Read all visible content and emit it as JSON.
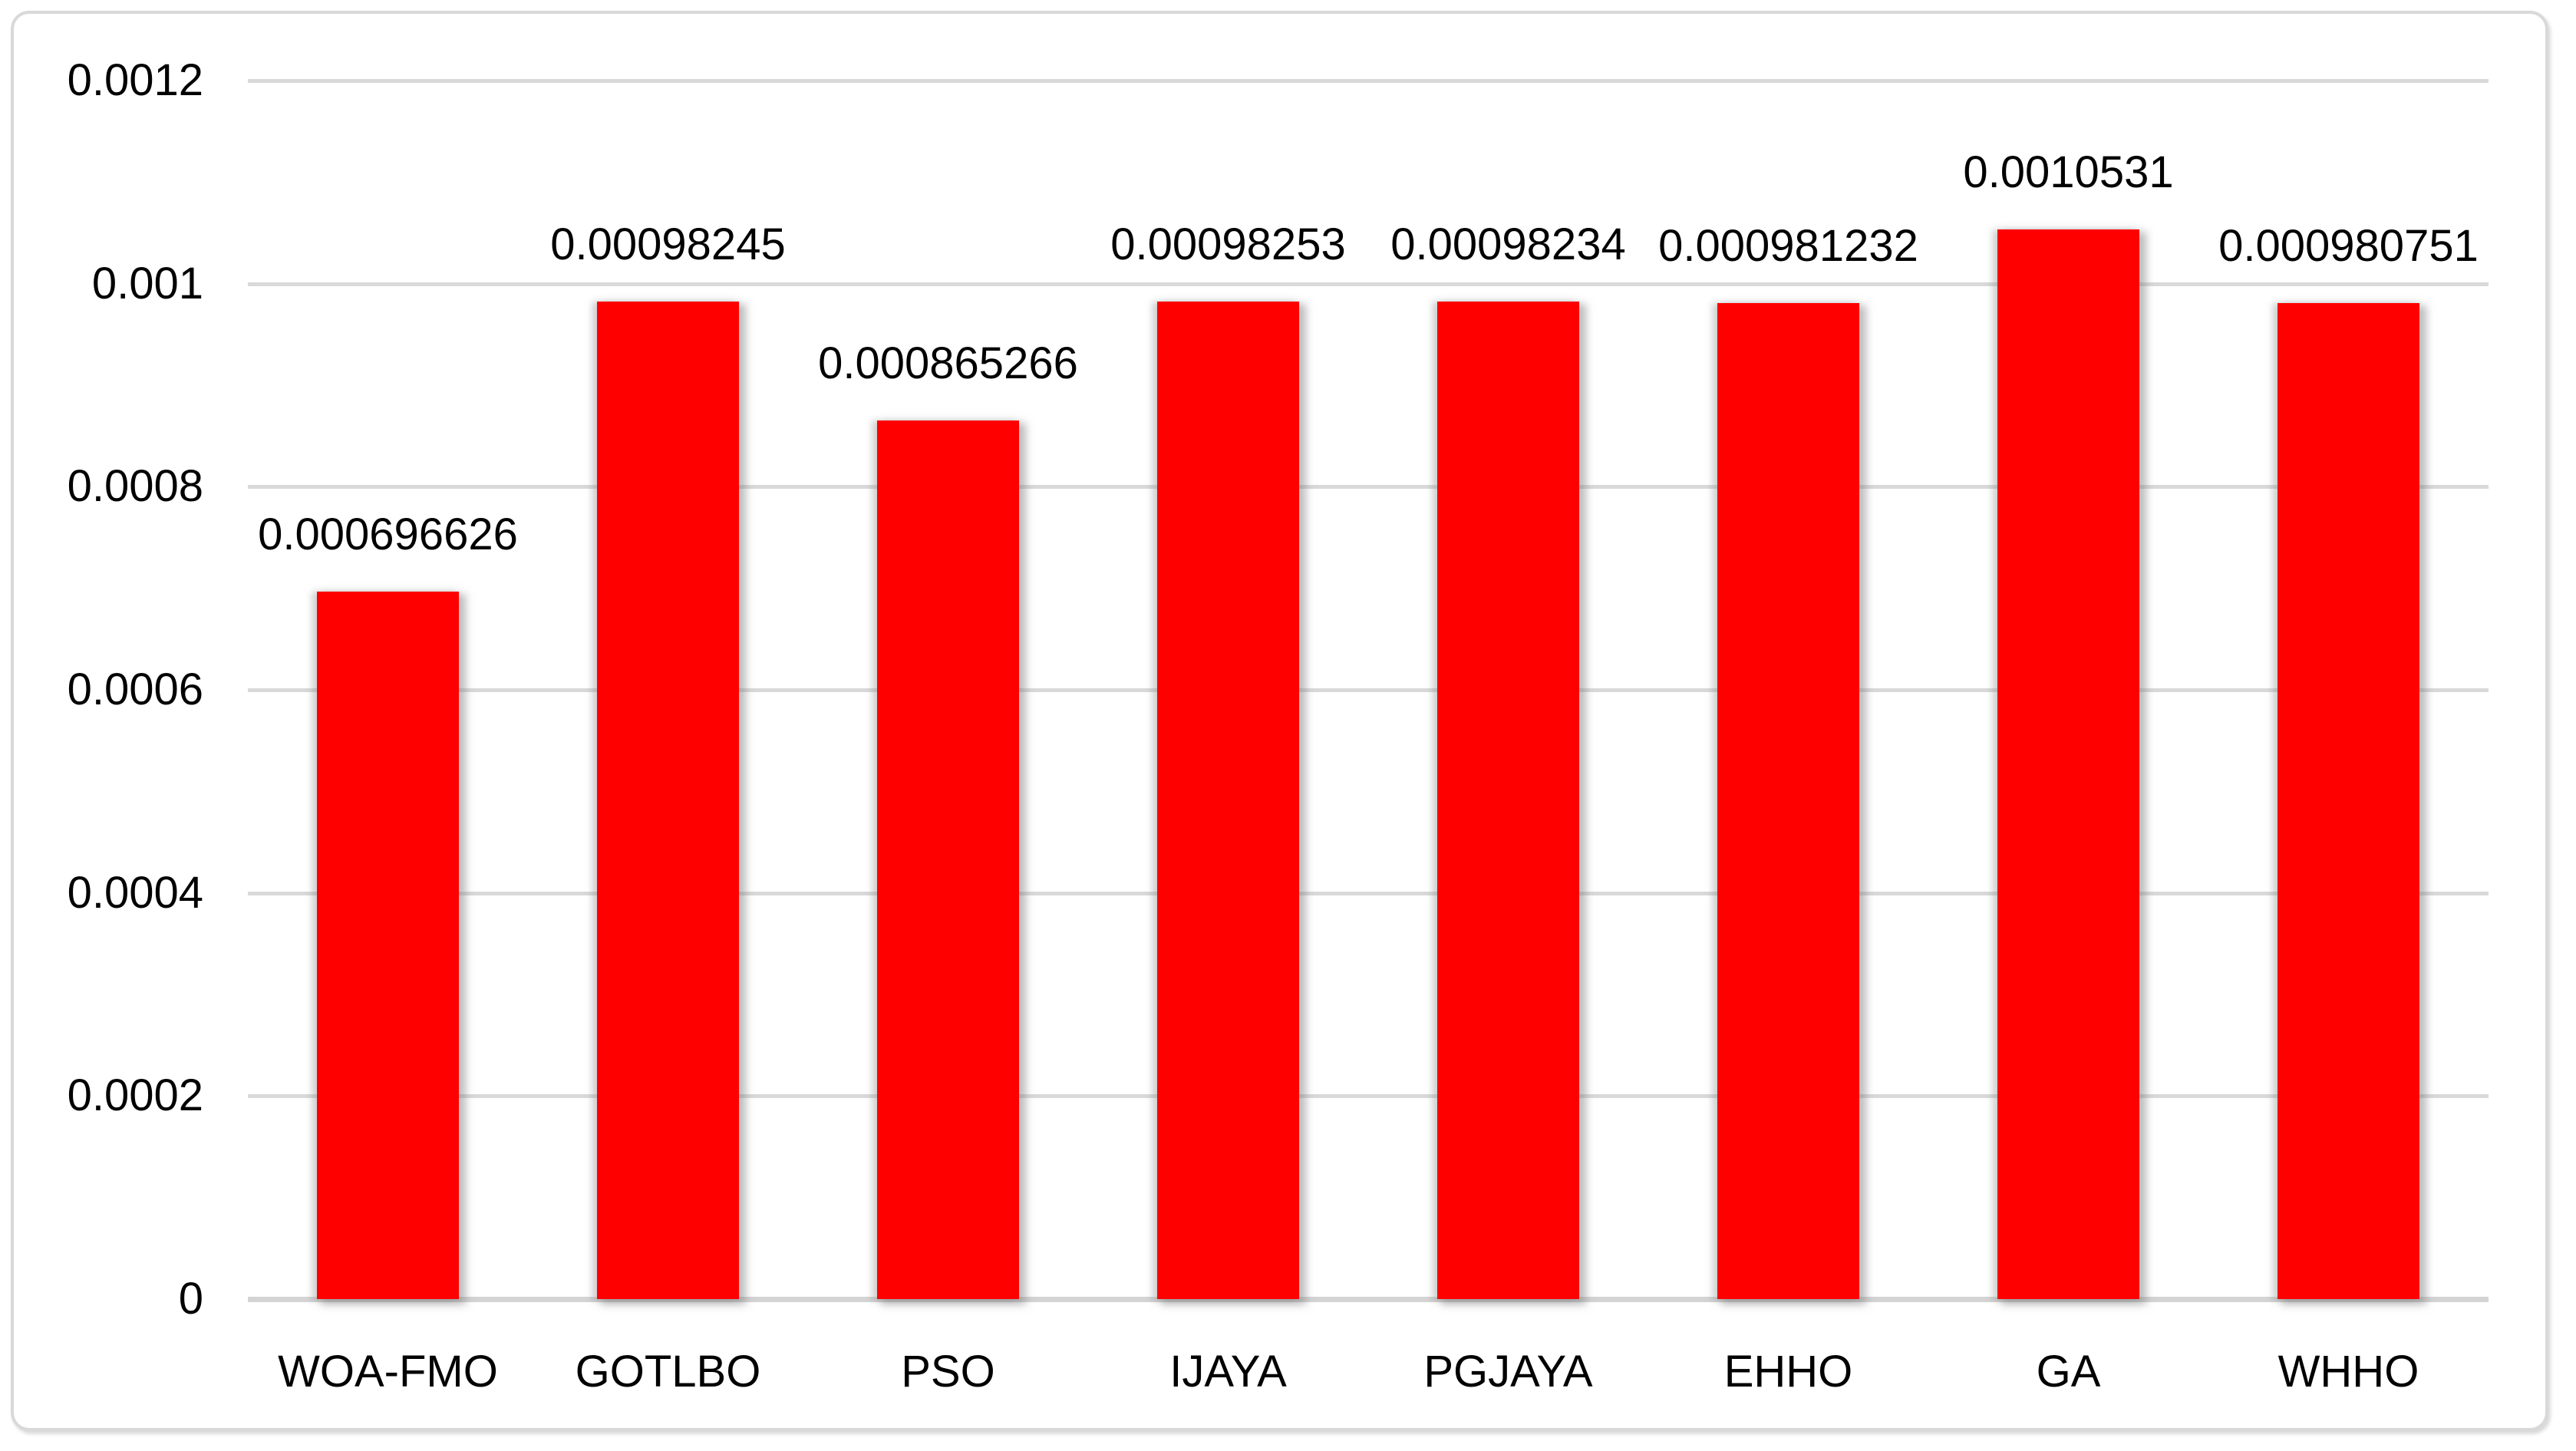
{
  "chart_data": {
    "type": "bar",
    "title": "",
    "xlabel": "",
    "ylabel": "",
    "categories": [
      "WOA-FMO",
      "GOTLBO",
      "PSO",
      "IJAYA",
      "PGJAYA",
      "EHHO",
      "GA",
      "WHHO"
    ],
    "values": [
      0.000696626,
      0.00098245,
      0.000865266,
      0.00098253,
      0.00098234,
      0.000981232,
      0.0010531,
      0.000980751
    ],
    "data_labels": [
      "0.000696626",
      "0.00098245",
      "0.000865266",
      "0.00098253",
      "0.00098234",
      "0.000981232",
      "0.0010531",
      "0.000980751"
    ],
    "ylim": [
      0,
      0.0012
    ],
    "yticks": [
      0,
      0.0002,
      0.0004,
      0.0006,
      0.0008,
      0.001,
      0.0012
    ],
    "ytick_labels": [
      "0",
      "0.0002",
      "0.0004",
      "0.0006",
      "0.0008",
      "0.001",
      "0.0012"
    ],
    "grid": "horizontal-on",
    "legend": "none",
    "colors": {
      "bar": "#FF0000",
      "gridline": "#D9D9D9",
      "axis_line": "#D4D4D4",
      "text": "#000000",
      "background": "#FFFFFF",
      "frame_border": "#D9D9D9"
    }
  }
}
